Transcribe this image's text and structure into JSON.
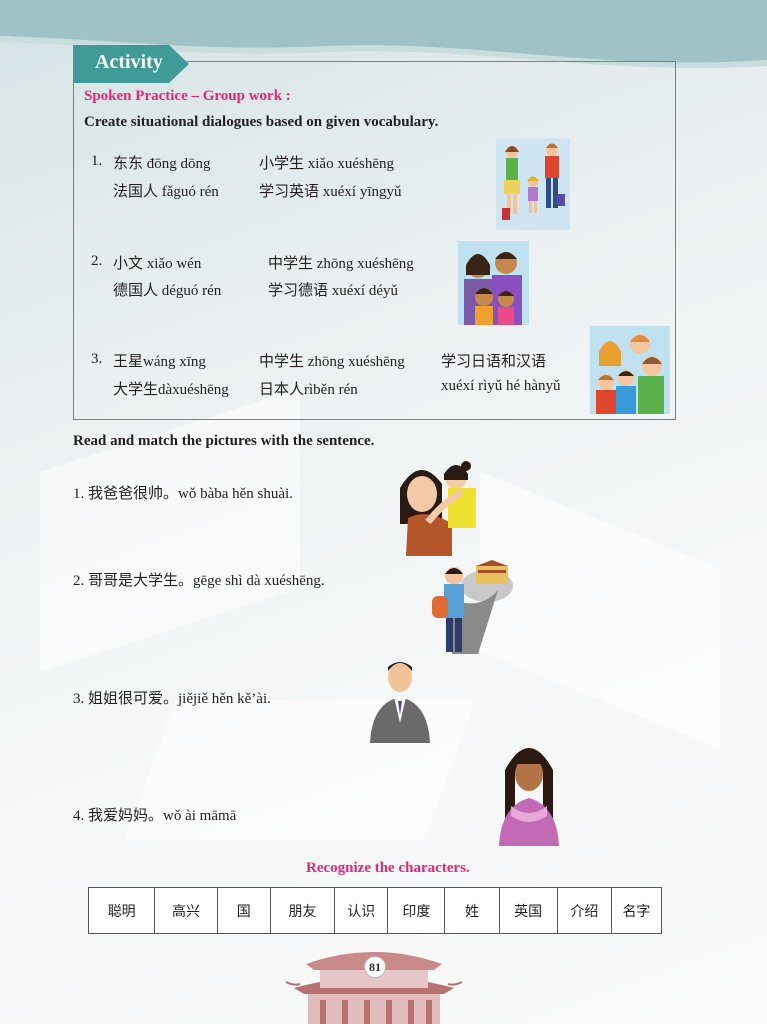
{
  "activity": {
    "tab_label": "Activity",
    "subtitle": "Spoken Practice – Group work :",
    "instruction": "Create situational dialogues based on given vocabulary.",
    "items": [
      {
        "num": "1.",
        "row1": [
          "东东 đōng dōng",
          "小学生 xiǎo xuéshēng"
        ],
        "row2": [
          "法国人 fǎguó rén",
          "学习英语 xuéxí yīngyǔ"
        ]
      },
      {
        "num": "2.",
        "row1": [
          "小文 xiǎo wén",
          "中学生 zhōng xuéshēng"
        ],
        "row2": [
          "德国人 déguó rén",
          "学习德语 xuéxí  déyǔ"
        ]
      },
      {
        "num": "3.",
        "row1": [
          "王星wáng xīng",
          "中学生 zhōng xuéshēng",
          "学习日语和汉语"
        ],
        "row2": [
          "大学生dàxuéshēng",
          "日本人rìběn rén",
          "xuéxí rìyǔ hé hànyǔ"
        ]
      }
    ]
  },
  "match": {
    "heading": "Read and match the pictures with the sentence.",
    "sentences": [
      "1. 我爸爸很帅。wǒ bàba hěn shuài.",
      "2. 哥哥是大学生。gēge shì dà xuéshēng.",
      "3. 姐姐很可爱。jiějiě hěn kě’ài.",
      "4. 我爱妈妈。wǒ ài māmā"
    ]
  },
  "recognize": {
    "heading": "Recognize the characters.",
    "chars": [
      "聪明",
      "高兴",
      "国",
      "朋友",
      "认识",
      "印度",
      "姓",
      "英国",
      "介绍",
      "名字"
    ]
  },
  "page_number": "81",
  "colors": {
    "teal": "#3f9a98",
    "pink": "#e8247a",
    "band": "#9ec2c6"
  }
}
